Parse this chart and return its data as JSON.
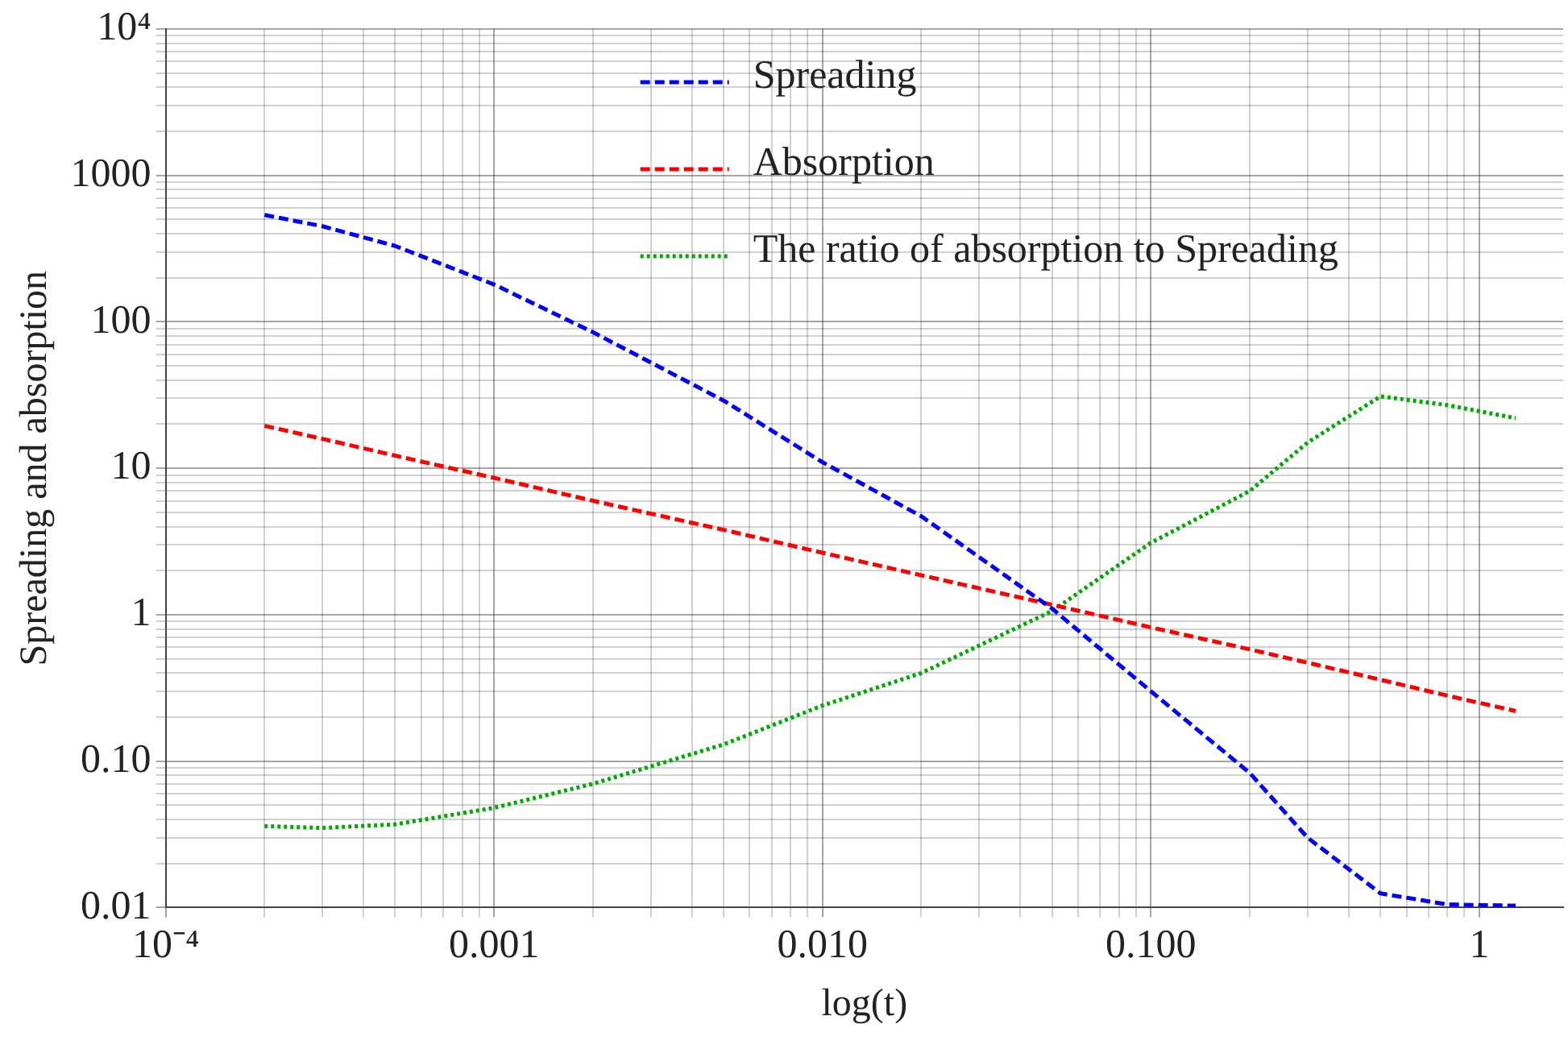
{
  "chart_data": {
    "type": "line",
    "xlabel": "log(t)",
    "ylabel": "Spreading and absorption",
    "log": "xy",
    "grid": true,
    "legend": "top",
    "marker": "none",
    "x": [
      0.0002,
      0.0003,
      0.0005,
      0.001,
      0.002,
      0.005,
      0.01,
      0.02,
      0.05,
      0.1,
      0.2,
      0.3,
      0.5,
      0.8,
      1.29
    ],
    "series": [
      {
        "name": "Spreading",
        "color": "#0000ff",
        "line_style": "dashed",
        "values": [
          537,
          450,
          330,
          180,
          85,
          29,
          11,
          4.7,
          1.1,
          0.3,
          0.083,
          0.03,
          0.0125,
          0.0105,
          0.0103
        ]
      },
      {
        "name": "Absorption",
        "color": "#ff0000",
        "line_style": "dashed",
        "values": [
          19.5,
          15.9,
          12.2,
          8.6,
          6.0,
          3.8,
          2.65,
          1.86,
          1.17,
          0.82,
          0.58,
          0.47,
          0.36,
          0.28,
          0.22
        ]
      },
      {
        "name": "The ratio of absorption to Spreading",
        "color": "#00aa00",
        "line_style": "dotted",
        "values": [
          0.036,
          0.035,
          0.037,
          0.048,
          0.07,
          0.13,
          0.24,
          0.4,
          1.06,
          3.1,
          7,
          15,
          31,
          27,
          22
        ]
      }
    ],
    "xlim": [
      0.0001,
      1.8
    ],
    "xticks": [
      {
        "value": 0.0001,
        "label": "10⁻⁴"
      },
      {
        "value": 0.0002,
        "label": null
      },
      {
        "value": 0.0003,
        "label": null
      },
      {
        "value": 0.0004,
        "label": null
      },
      {
        "value": 0.0005,
        "label": null
      },
      {
        "value": 0.0006,
        "label": null
      },
      {
        "value": 0.0007,
        "label": null
      },
      {
        "value": 0.0008,
        "label": null
      },
      {
        "value": 0.0009,
        "label": null
      },
      {
        "value": 0.001,
        "label": "0.001"
      },
      {
        "value": 0.002,
        "label": null
      },
      {
        "value": 0.003,
        "label": null
      },
      {
        "value": 0.004,
        "label": null
      },
      {
        "value": 0.005,
        "label": null
      },
      {
        "value": 0.006,
        "label": null
      },
      {
        "value": 0.007,
        "label": null
      },
      {
        "value": 0.008,
        "label": null
      },
      {
        "value": 0.009,
        "label": null
      },
      {
        "value": 0.01,
        "label": "0.010"
      },
      {
        "value": 0.02,
        "label": null
      },
      {
        "value": 0.03,
        "label": null
      },
      {
        "value": 0.04,
        "label": null
      },
      {
        "value": 0.05,
        "label": null
      },
      {
        "value": 0.06,
        "label": null
      },
      {
        "value": 0.07,
        "label": null
      },
      {
        "value": 0.08,
        "label": null
      },
      {
        "value": 0.09,
        "label": null
      },
      {
        "value": 0.1,
        "label": "0.100"
      },
      {
        "value": 0.2,
        "label": null
      },
      {
        "value": 0.3,
        "label": null
      },
      {
        "value": 0.4,
        "label": null
      },
      {
        "value": 0.5,
        "label": null
      },
      {
        "value": 0.6,
        "label": null
      },
      {
        "value": 0.7,
        "label": null
      },
      {
        "value": 0.8,
        "label": null
      },
      {
        "value": 0.9,
        "label": null
      },
      {
        "value": 1,
        "label": "1"
      }
    ],
    "ylim": [
      0.01,
      10000
    ],
    "yticks": [
      {
        "value": 0.01,
        "label": "0.01"
      },
      {
        "value": 0.02,
        "label": null
      },
      {
        "value": 0.03,
        "label": null
      },
      {
        "value": 0.04,
        "label": null
      },
      {
        "value": 0.05,
        "label": null
      },
      {
        "value": 0.06,
        "label": null
      },
      {
        "value": 0.07,
        "label": null
      },
      {
        "value": 0.08,
        "label": null
      },
      {
        "value": 0.09,
        "label": null
      },
      {
        "value": 0.1,
        "label": "0.10"
      },
      {
        "value": 0.2,
        "label": null
      },
      {
        "value": 0.3,
        "label": null
      },
      {
        "value": 0.4,
        "label": null
      },
      {
        "value": 0.5,
        "label": null
      },
      {
        "value": 0.6,
        "label": null
      },
      {
        "value": 0.7,
        "label": null
      },
      {
        "value": 0.8,
        "label": null
      },
      {
        "value": 0.9,
        "label": null
      },
      {
        "value": 1,
        "label": "1"
      },
      {
        "value": 2,
        "label": null
      },
      {
        "value": 3,
        "label": null
      },
      {
        "value": 4,
        "label": null
      },
      {
        "value": 5,
        "label": null
      },
      {
        "value": 6,
        "label": null
      },
      {
        "value": 7,
        "label": null
      },
      {
        "value": 8,
        "label": null
      },
      {
        "value": 9,
        "label": null
      },
      {
        "value": 10,
        "label": "10"
      },
      {
        "value": 20,
        "label": null
      },
      {
        "value": 30,
        "label": null
      },
      {
        "value": 40,
        "label": null
      },
      {
        "value": 50,
        "label": null
      },
      {
        "value": 60,
        "label": null
      },
      {
        "value": 70,
        "label": null
      },
      {
        "value": 80,
        "label": null
      },
      {
        "value": 90,
        "label": null
      },
      {
        "value": 100,
        "label": "100"
      },
      {
        "value": 200,
        "label": null
      },
      {
        "value": 300,
        "label": null
      },
      {
        "value": 400,
        "label": null
      },
      {
        "value": 500,
        "label": null
      },
      {
        "value": 600,
        "label": null
      },
      {
        "value": 700,
        "label": null
      },
      {
        "value": 800,
        "label": null
      },
      {
        "value": 900,
        "label": null
      },
      {
        "value": 1000,
        "label": "1000"
      },
      {
        "value": 2000,
        "label": null
      },
      {
        "value": 3000,
        "label": null
      },
      {
        "value": 4000,
        "label": null
      },
      {
        "value": 5000,
        "label": null
      },
      {
        "value": 6000,
        "label": null
      },
      {
        "value": 7000,
        "label": null
      },
      {
        "value": 8000,
        "label": null
      },
      {
        "value": 9000,
        "label": null
      },
      {
        "value": 10000,
        "label": "10⁴"
      }
    ]
  }
}
